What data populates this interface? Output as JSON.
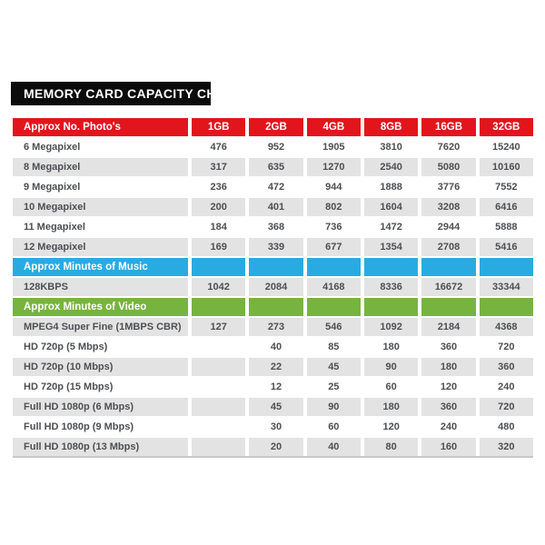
{
  "chart_data": {
    "type": "table",
    "title": "MEMORY CARD CAPACITY CHART",
    "columns": [
      "1GB",
      "2GB",
      "4GB",
      "8GB",
      "16GB",
      "32GB"
    ],
    "colors": {
      "photos_header": "#e2151d",
      "music_header": "#29abe2",
      "video_header": "#77b43f",
      "row_gray": "#e3e3e3",
      "row_white": "#ffffff",
      "title_bg": "#0b0b0b",
      "header_text": "#ffffff",
      "body_text": "#4d4f53"
    },
    "layout": {
      "legend": "none",
      "grid": "off",
      "header_rows_have_column_labels_only_in_first_section": true
    },
    "sections": [
      {
        "header": "Approx No. Photo's",
        "color": "#e2151d",
        "rows": [
          {
            "label": "6 Megapixel",
            "values": [
              "476",
              "952",
              "1905",
              "3810",
              "7620",
              "15240"
            ]
          },
          {
            "label": "8 Megapixel",
            "values": [
              "317",
              "635",
              "1270",
              "2540",
              "5080",
              "10160"
            ]
          },
          {
            "label": "9 Megapixel",
            "values": [
              "236",
              "472",
              "944",
              "1888",
              "3776",
              "7552"
            ]
          },
          {
            "label": "10 Megapixel",
            "values": [
              "200",
              "401",
              "802",
              "1604",
              "3208",
              "6416"
            ]
          },
          {
            "label": "11 Megapixel",
            "values": [
              "184",
              "368",
              "736",
              "1472",
              "2944",
              "5888"
            ]
          },
          {
            "label": "12 Megapixel",
            "values": [
              "169",
              "339",
              "677",
              "1354",
              "2708",
              "5416"
            ]
          }
        ]
      },
      {
        "header": "Approx Minutes of Music",
        "color": "#29abe2",
        "rows": [
          {
            "label": "128KBPS",
            "values": [
              "1042",
              "2084",
              "4168",
              "8336",
              "16672",
              "33344"
            ]
          }
        ]
      },
      {
        "header": "Approx Minutes of Video",
        "color": "#77b43f",
        "rows": [
          {
            "label": "MPEG4 Super Fine (1MBPS CBR)",
            "values": [
              "127",
              "273",
              "546",
              "1092",
              "2184",
              "4368"
            ]
          },
          {
            "label": "HD 720p (5 Mbps)",
            "values": [
              "",
              "40",
              "85",
              "180",
              "360",
              "720"
            ]
          },
          {
            "label": "HD 720p (10 Mbps)",
            "values": [
              "",
              "22",
              "45",
              "90",
              "180",
              "360"
            ]
          },
          {
            "label": "HD 720p (15 Mbps)",
            "values": [
              "",
              "12",
              "25",
              "60",
              "120",
              "240"
            ]
          },
          {
            "label": "Full HD 1080p (6 Mbps)",
            "values": [
              "",
              "45",
              "90",
              "180",
              "360",
              "720"
            ]
          },
          {
            "label": "Full HD 1080p (9 Mbps)",
            "values": [
              "",
              "30",
              "60",
              "120",
              "240",
              "480"
            ]
          },
          {
            "label": "Full HD 1080p (13 Mbps)",
            "values": [
              "",
              "20",
              "40",
              "80",
              "160",
              "320"
            ]
          }
        ]
      }
    ]
  }
}
